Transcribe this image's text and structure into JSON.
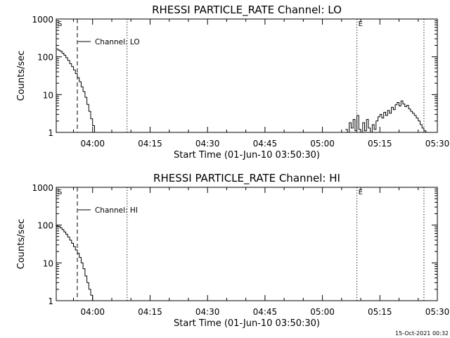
{
  "footer": {
    "generated": "15-Oct-2021 00:32"
  },
  "chart_data": [
    {
      "type": "line",
      "title": "RHESSI PARTICLE_RATE Channel: LO",
      "xlabel": "Start Time (01-Jun-10 03:50:30)",
      "ylabel": "Counts/sec",
      "y_scale": "log",
      "ylim": [
        1,
        1000
      ],
      "yticks": [
        "1",
        "10",
        "100",
        "1000"
      ],
      "xlim": [
        "03:50:30",
        "05:30:00"
      ],
      "xticks": [
        "04:00",
        "04:15",
        "04:30",
        "04:45",
        "05:00",
        "05:15",
        "05:30"
      ],
      "grid": false,
      "legend": {
        "label": "Channel: LO",
        "placement": "top-left"
      },
      "markers": [
        {
          "label": "S",
          "time": "03:50:30",
          "style": "dotted"
        },
        {
          "label": "",
          "time": "03:56:00",
          "style": "dashed"
        },
        {
          "label": "",
          "time": "04:09:00",
          "style": "dotted"
        },
        {
          "label": "E",
          "time": "05:09:00",
          "style": "dotted"
        },
        {
          "label": "",
          "time": "05:26:30",
          "style": "dotted"
        }
      ],
      "series": [
        {
          "segments": [
            {
              "x": [
                "03:50:30",
                "03:51:00",
                "03:51:30",
                "03:52:00",
                "03:52:30",
                "03:53:00",
                "03:53:30",
                "03:54:00",
                "03:54:30",
                "03:55:00",
                "03:55:30",
                "03:56:00",
                "03:56:30",
                "03:57:00",
                "03:57:30",
                "03:58:00",
                "03:58:30",
                "03:59:00",
                "03:59:30",
                "04:00:00",
                "04:00:30"
              ],
              "y": [
                160,
                150,
                140,
                125,
                110,
                95,
                80,
                66,
                55,
                45,
                36,
                28,
                22,
                16,
                12,
                8.5,
                5.5,
                3.6,
                2.3,
                1.5,
                1
              ]
            },
            {
              "x": [
                "05:06:00",
                "05:06:30",
                "05:07:00",
                "05:07:30",
                "05:08:00",
                "05:08:30",
                "05:09:00",
                "05:09:30",
                "05:10:00",
                "05:10:30",
                "05:11:00",
                "05:11:30",
                "05:12:00",
                "05:12:30",
                "05:13:00",
                "05:13:30",
                "05:14:00",
                "05:14:30",
                "05:15:00",
                "05:15:30",
                "05:16:00",
                "05:16:30",
                "05:17:00",
                "05:17:30",
                "05:18:00",
                "05:18:30",
                "05:19:00",
                "05:19:30",
                "05:20:00",
                "05:20:30",
                "05:21:00",
                "05:21:30",
                "05:22:00",
                "05:22:30",
                "05:23:00",
                "05:23:30",
                "05:24:00",
                "05:24:30",
                "05:25:00",
                "05:25:30",
                "05:26:00",
                "05:26:30",
                "05:27:00"
              ],
              "y": [
                1.2,
                1,
                1.8,
                1.3,
                2.2,
                1.1,
                2.8,
                1.2,
                1,
                1.8,
                1.1,
                2.2,
                1.3,
                1,
                1.6,
                1.2,
                2,
                2.6,
                3,
                2.4,
                3.4,
                2.8,
                3.8,
                3.2,
                4.6,
                4,
                5.4,
                6.2,
                5,
                6.8,
                5.6,
                4.8,
                5.2,
                4.2,
                3.6,
                3.2,
                2.8,
                2.4,
                2,
                1.6,
                1.3,
                1.1,
                1
              ]
            }
          ]
        }
      ]
    },
    {
      "type": "line",
      "title": "RHESSI PARTICLE_RATE Channel: HI",
      "xlabel": "Start Time (01-Jun-10 03:50:30)",
      "ylabel": "Counts/sec",
      "y_scale": "log",
      "ylim": [
        1,
        1000
      ],
      "yticks": [
        "1",
        "10",
        "100",
        "1000"
      ],
      "xlim": [
        "03:50:30",
        "05:30:00"
      ],
      "xticks": [
        "04:00",
        "04:15",
        "04:30",
        "04:45",
        "05:00",
        "05:15",
        "05:30"
      ],
      "grid": false,
      "legend": {
        "label": "Channel: HI",
        "placement": "top-left"
      },
      "markers": [
        {
          "label": "S",
          "time": "03:50:30",
          "style": "dotted"
        },
        {
          "label": "",
          "time": "03:56:00",
          "style": "dashed"
        },
        {
          "label": "",
          "time": "04:09:00",
          "style": "dotted"
        },
        {
          "label": "E",
          "time": "05:09:00",
          "style": "dotted"
        },
        {
          "label": "",
          "time": "05:26:30",
          "style": "dotted"
        }
      ],
      "series": [
        {
          "segments": [
            {
              "x": [
                "03:50:30",
                "03:51:00",
                "03:51:30",
                "03:52:00",
                "03:52:30",
                "03:53:00",
                "03:53:30",
                "03:54:00",
                "03:54:30",
                "03:55:00",
                "03:55:30",
                "03:56:00",
                "03:56:30",
                "03:57:00",
                "03:57:30",
                "03:58:00",
                "03:58:30",
                "03:59:00",
                "03:59:30",
                "04:00:00"
              ],
              "y": [
                95,
                92,
                85,
                76,
                66,
                57,
                48,
                40,
                33,
                27,
                22,
                18,
                14,
                10,
                7,
                4.5,
                3,
                2,
                1.4,
                1
              ]
            }
          ]
        }
      ]
    }
  ]
}
